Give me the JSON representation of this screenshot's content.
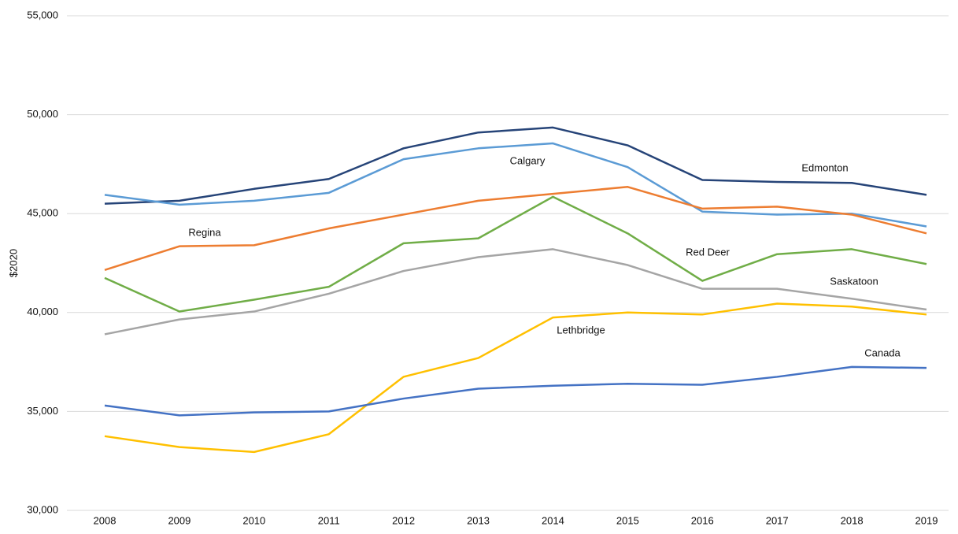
{
  "chart_data": {
    "type": "line",
    "y_label": "$2020",
    "categories": [
      "2008",
      "2009",
      "2010",
      "2011",
      "2012",
      "2013",
      "2014",
      "2015",
      "2016",
      "2017",
      "2018",
      "2019"
    ],
    "ylim": [
      30000,
      55000
    ],
    "yticks": [
      {
        "value": 30000,
        "label": "30,000"
      },
      {
        "value": 35000,
        "label": "35,000"
      },
      {
        "value": 40000,
        "label": "40,000"
      },
      {
        "value": 45000,
        "label": "45,000"
      },
      {
        "value": 50000,
        "label": "50,000"
      },
      {
        "value": 55000,
        "label": "55,000"
      }
    ],
    "grid": true,
    "series": [
      {
        "name": "Edmonton",
        "color": "#264478",
        "values": [
          45500,
          45650,
          46250,
          46750,
          48300,
          49100,
          49350,
          48450,
          46700,
          46600,
          46550,
          45950
        ]
      },
      {
        "name": "Calgary",
        "color": "#5b9bd5",
        "values": [
          45950,
          45450,
          45650,
          46050,
          47750,
          48300,
          48550,
          47350,
          45100,
          44950,
          45000,
          44350
        ]
      },
      {
        "name": "Regina",
        "color": "#ed7d31",
        "values": [
          42150,
          43350,
          43400,
          44250,
          44950,
          45650,
          46000,
          46350,
          45250,
          45350,
          44950,
          44000
        ]
      },
      {
        "name": "Red Deer",
        "color": "#70ad47",
        "values": [
          41750,
          40050,
          40650,
          41300,
          43500,
          43750,
          45850,
          44000,
          41600,
          42950,
          43200,
          42450
        ]
      },
      {
        "name": "Saskatoon",
        "color": "#a5a5a5",
        "values": [
          38900,
          39650,
          40050,
          40950,
          42100,
          42800,
          43200,
          42400,
          41200,
          41200,
          40700,
          40150
        ]
      },
      {
        "name": "Lethbridge",
        "color": "#ffc000",
        "values": [
          33750,
          33200,
          32950,
          33850,
          36750,
          37700,
          39750,
          40000,
          39900,
          40450,
          40300,
          39900
        ]
      },
      {
        "name": "Canada",
        "color": "#4472c4",
        "values": [
          35300,
          34800,
          34950,
          35000,
          35650,
          36150,
          36300,
          36400,
          36350,
          36750,
          37250,
          37200
        ]
      }
    ]
  }
}
